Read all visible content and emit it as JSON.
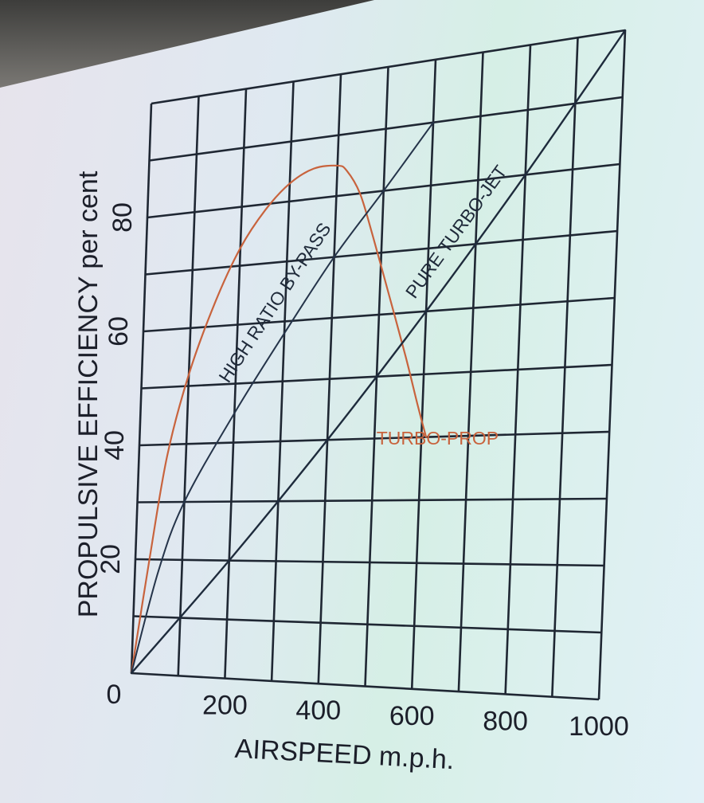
{
  "chart_data": {
    "type": "line",
    "title": "",
    "xlabel": "AIRSPEED m.p.h.",
    "ylabel": "PROPULSIVE EFFICIENCY per cent",
    "xlim": [
      0,
      1000
    ],
    "ylim": [
      0,
      100
    ],
    "x_ticks": [
      "0",
      "200",
      "400",
      "600",
      "800",
      "1000"
    ],
    "y_ticks": [
      "20",
      "40",
      "60",
      "80"
    ],
    "grid": true,
    "colors": {
      "grid": "#1f2733",
      "turbo_prop": "#c8633d",
      "by_pass": "#25344a",
      "turbo_jet": "#1e2b3c"
    },
    "series": [
      {
        "name": "TURBO-PROP",
        "x": [
          0,
          30,
          60,
          100,
          150,
          200,
          250,
          300,
          350,
          400,
          420,
          450,
          480,
          520,
          560,
          590,
          610
        ],
        "y": [
          0,
          20,
          38,
          52,
          64,
          73,
          79,
          83,
          85,
          85,
          84,
          80,
          73,
          63,
          53,
          45,
          40
        ]
      },
      {
        "name": "HIGH RATIO BY-PASS",
        "x": [
          0,
          50,
          100,
          200,
          300,
          400,
          500,
          600
        ],
        "y": [
          0,
          18,
          30,
          45,
          58,
          70,
          80,
          90
        ]
      },
      {
        "name": "PURE TURBO-JET",
        "x": [
          0,
          200,
          400,
          600,
          800,
          1000
        ],
        "y": [
          0,
          20,
          40,
          60,
          80,
          100
        ]
      }
    ]
  }
}
